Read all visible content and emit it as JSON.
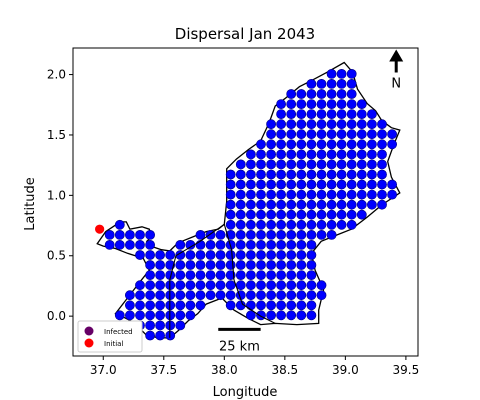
{
  "chart_data": {
    "type": "scatter",
    "title": "Dispersal Jan 2043",
    "xlabel": "Longitude",
    "ylabel": "Latitude",
    "xlim": [
      36.75,
      39.6
    ],
    "ylim": [
      -0.33,
      2.22
    ],
    "xticks": [
      37.0,
      37.5,
      38.0,
      38.5,
      39.0,
      39.5
    ],
    "xtick_labels": [
      "37.0",
      "37.5",
      "38.0",
      "38.5",
      "39.0",
      "39.5"
    ],
    "yticks": [
      0.0,
      0.5,
      1.0,
      1.5,
      2.0
    ],
    "ytick_labels": [
      "0.0",
      "0.5",
      "1.0",
      "1.5",
      "2.0"
    ],
    "grid": false,
    "grid_spacing": 0.0833,
    "dot_color": "#0000ff",
    "dot_edge_color": "#000080",
    "outline_polygon": [
      [
        36.95,
        0.6
      ],
      [
        37.02,
        0.7
      ],
      [
        37.08,
        0.74
      ],
      [
        37.14,
        0.78
      ],
      [
        37.19,
        0.78
      ],
      [
        37.22,
        0.72
      ],
      [
        37.32,
        0.74
      ],
      [
        37.38,
        0.72
      ],
      [
        37.4,
        0.66
      ],
      [
        37.36,
        0.62
      ],
      [
        37.42,
        0.57
      ],
      [
        37.48,
        0.55
      ],
      [
        37.55,
        0.54
      ],
      [
        37.6,
        0.59
      ],
      [
        37.65,
        0.62
      ],
      [
        37.75,
        0.66
      ],
      [
        37.85,
        0.7
      ],
      [
        37.95,
        0.72
      ],
      [
        38.0,
        0.76
      ],
      [
        38.02,
        0.95
      ],
      [
        38.02,
        1.22
      ],
      [
        38.1,
        1.3
      ],
      [
        38.2,
        1.38
      ],
      [
        38.3,
        1.45
      ],
      [
        38.37,
        1.6
      ],
      [
        38.42,
        1.74
      ],
      [
        38.5,
        1.8
      ],
      [
        38.62,
        1.9
      ],
      [
        38.72,
        1.95
      ],
      [
        38.85,
        2.02
      ],
      [
        38.99,
        2.1
      ],
      [
        39.06,
        2.02
      ],
      [
        39.1,
        1.88
      ],
      [
        39.18,
        1.76
      ],
      [
        39.25,
        1.7
      ],
      [
        39.3,
        1.62
      ],
      [
        39.38,
        1.56
      ],
      [
        39.45,
        1.54
      ],
      [
        39.4,
        1.42
      ],
      [
        39.35,
        1.28
      ],
      [
        39.38,
        1.15
      ],
      [
        39.45,
        1.02
      ],
      [
        39.3,
        0.92
      ],
      [
        39.18,
        0.82
      ],
      [
        39.05,
        0.72
      ],
      [
        38.95,
        0.68
      ],
      [
        38.8,
        0.62
      ],
      [
        38.72,
        0.52
      ],
      [
        38.75,
        0.38
      ],
      [
        38.82,
        0.22
      ],
      [
        38.78,
        0.05
      ],
      [
        38.78,
        -0.06
      ],
      [
        38.6,
        -0.07
      ],
      [
        38.42,
        -0.06
      ],
      [
        38.3,
        -0.07
      ],
      [
        38.2,
        -0.02
      ],
      [
        38.08,
        0.05
      ],
      [
        37.98,
        0.15
      ],
      [
        37.85,
        0.1
      ],
      [
        37.78,
        0.02
      ],
      [
        37.7,
        -0.04
      ],
      [
        37.62,
        -0.12
      ],
      [
        37.55,
        -0.18
      ],
      [
        37.45,
        -0.18
      ],
      [
        37.35,
        -0.15
      ],
      [
        37.25,
        -0.05
      ],
      [
        37.15,
        0.0
      ],
      [
        37.1,
        0.02
      ],
      [
        37.2,
        0.15
      ],
      [
        37.3,
        0.28
      ],
      [
        37.38,
        0.38
      ],
      [
        37.33,
        0.48
      ],
      [
        37.2,
        0.52
      ],
      [
        37.1,
        0.56
      ],
      [
        37.0,
        0.58
      ]
    ],
    "inner_boundaries": [
      [
        [
          38.0,
          0.76
        ],
        [
          37.8,
          0.62
        ],
        [
          37.6,
          0.5
        ],
        [
          37.55,
          0.3
        ],
        [
          37.55,
          0.1
        ],
        [
          37.55,
          -0.18
        ]
      ],
      [
        [
          38.0,
          0.76
        ],
        [
          38.06,
          0.55
        ],
        [
          38.08,
          0.3
        ],
        [
          38.15,
          0.1
        ],
        [
          38.3,
          0.0
        ],
        [
          38.42,
          -0.06
        ]
      ]
    ],
    "initial_point": [
      36.97,
      0.72
    ],
    "initial_color": "#ff0000",
    "infected_color": "#660066",
    "legend": {
      "placement": "lower-left",
      "entries": [
        {
          "label": "Infected",
          "color": "#660066"
        },
        {
          "label": "Initial",
          "color": "#ff0000"
        }
      ]
    },
    "scale_bar": {
      "label": "25 km",
      "x_start": 37.95,
      "x_end": 38.3,
      "y": -0.11
    },
    "north_arrow": {
      "label": "N",
      "x": 39.42,
      "y": 2.1
    }
  }
}
